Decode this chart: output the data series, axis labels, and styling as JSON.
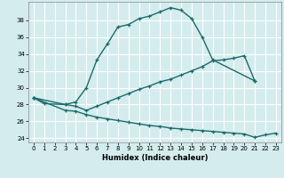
{
  "xlabel": "Humidex (Indice chaleur)",
  "bg_color": "#d4ecee",
  "grid_color": "#ffffff",
  "line_color": "#1a6b6b",
  "xlim": [
    -0.5,
    23.5
  ],
  "ylim": [
    23.5,
    40.2
  ],
  "xticks": [
    0,
    1,
    2,
    3,
    4,
    5,
    6,
    7,
    8,
    9,
    10,
    11,
    12,
    13,
    14,
    15,
    16,
    17,
    18,
    19,
    20,
    21,
    22,
    23
  ],
  "yticks": [
    24,
    26,
    28,
    30,
    32,
    34,
    36,
    38
  ],
  "line1_x": [
    0,
    1,
    3,
    4,
    5,
    6,
    7,
    8,
    9,
    10,
    11,
    12,
    13,
    14,
    15,
    16,
    17,
    21
  ],
  "line1_y": [
    28.8,
    28.1,
    28.0,
    28.3,
    30.0,
    33.3,
    35.2,
    37.2,
    37.5,
    38.2,
    38.5,
    39.0,
    39.5,
    39.2,
    38.2,
    36.0,
    33.3,
    30.8
  ],
  "line2_x": [
    0,
    3,
    4,
    5,
    6,
    7,
    8,
    9,
    10,
    11,
    12,
    13,
    14,
    15,
    16,
    17,
    18,
    19,
    20,
    21
  ],
  "line2_y": [
    28.8,
    28.0,
    27.8,
    27.3,
    27.8,
    28.3,
    28.8,
    29.3,
    29.8,
    30.2,
    30.7,
    31.0,
    31.5,
    32.0,
    32.5,
    33.2,
    33.3,
    33.5,
    33.8,
    30.8
  ],
  "line3_x": [
    0,
    3,
    4,
    5,
    6,
    7,
    8,
    9,
    10,
    11,
    12,
    13,
    14,
    15,
    16,
    17,
    18,
    19,
    20,
    21,
    22,
    23
  ],
  "line3_y": [
    28.8,
    27.3,
    27.2,
    26.8,
    26.5,
    26.3,
    26.1,
    25.9,
    25.7,
    25.5,
    25.4,
    25.2,
    25.1,
    25.0,
    24.9,
    24.8,
    24.7,
    24.6,
    24.5,
    24.1,
    24.4,
    24.6
  ],
  "marker_size": 3.0,
  "line_width": 1.0,
  "tick_fontsize": 5.0,
  "xlabel_fontsize": 6.0
}
